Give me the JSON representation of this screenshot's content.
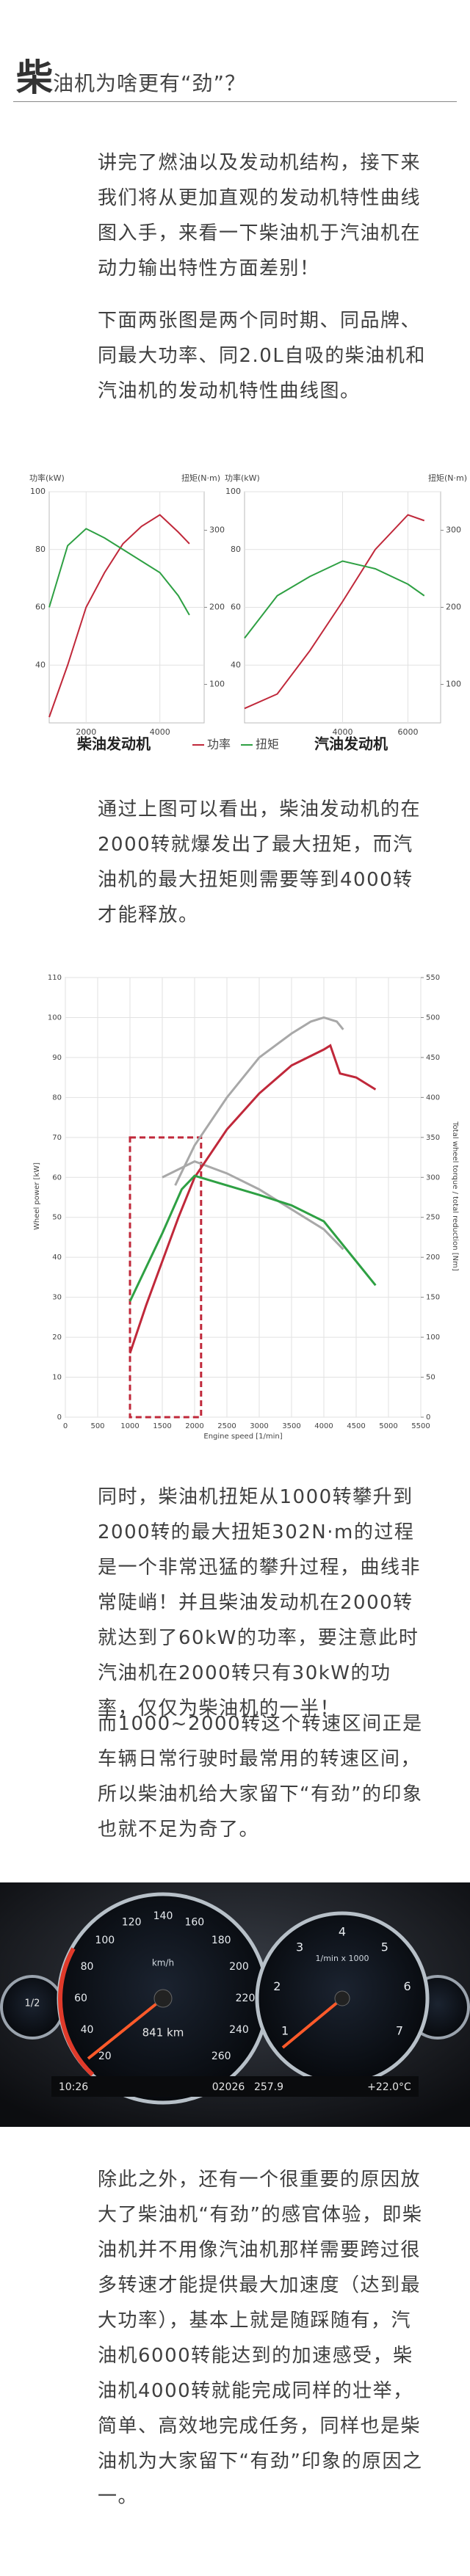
{
  "header": {
    "title_big": "柴",
    "title": "油机为啥更有“劲”？"
  },
  "paragraphs": [
    "讲完了燃油以及发动机结构，接下来我们将从更加直观的发动机特性曲线图入手，来看一下柴油机于汽油机在动力输出特性方面差别！",
    "下面两张图是两个同时期、同品牌、同最大功率、同2.0L自吸的柴油机和汽油机的发动机特性曲线图。",
    "通过上图可以看出，柴油发动机的在2000转就爆发出了最大扭矩，而汽油机的最大扭矩则需要等到4000转才能释放。",
    "同时，柴油机扭矩从1000转攀升到2000转的最大扭矩302N·m的过程是一个非常迅猛的攀升过程，曲线非常陡峭！并且柴油发动机在2000转就达到了60kW的功率，要注意此时汽油机在2000转只有30kW的功率，仅仅为柴油机的一半！",
    "而1000~2000转这个转速区间正是车辆日常行驶时最常用的转速区间，所以柴油机给大家留下“有劲”的印象也就不足为奇了。",
    "除此之外，还有一个很重要的原因放大了柴油机“有劲”的感官体验，即柴油机并不用像汽油机那样需要跨过很多转速才能提供最大加速度（达到最大功率），基本上就是随踩随有，汽油机6000转能达到的加速感受，柴油机4000转就能完成同样的壮举，简单、高效地完成任务，同样也是柴油机为大家留下“有劲”印象的原因之一。"
  ],
  "chart_data": [
    {
      "type": "line",
      "title": "柴油发动机",
      "ylabel": "功率(kW)",
      "y2label": "扭矩(N·m)",
      "xlim": [
        1000,
        5200
      ],
      "xticks": [
        2000,
        4000
      ],
      "ylim": [
        20,
        100
      ],
      "yticks": [
        40,
        60,
        80,
        100
      ],
      "y2lim": [
        50,
        350
      ],
      "y2ticks": [
        100,
        200,
        300
      ],
      "grid": true,
      "series": [
        {
          "name": "功率",
          "color": "#c0283a",
          "x": [
            1000,
            1500,
            2000,
            2500,
            3000,
            3500,
            4000,
            4500,
            4800
          ],
          "values": [
            22,
            40,
            60,
            72,
            82,
            88,
            92,
            86,
            82
          ]
        },
        {
          "name": "扭矩",
          "color": "#2ea043",
          "axis": "y2",
          "x": [
            1000,
            1500,
            2000,
            2500,
            3000,
            3500,
            4000,
            4500,
            4800
          ],
          "values": [
            200,
            280,
            302,
            290,
            275,
            260,
            245,
            215,
            190
          ]
        }
      ]
    },
    {
      "type": "line",
      "title": "汽油发动机",
      "ylabel": "功率(kW)",
      "y2label": "扭矩(N·m)",
      "xlim": [
        1000,
        7000
      ],
      "xticks": [
        4000,
        6000
      ],
      "ylim": [
        20,
        100
      ],
      "yticks": [
        40,
        60,
        80,
        100
      ],
      "y2lim": [
        50,
        350
      ],
      "y2ticks": [
        100,
        200,
        300
      ],
      "grid": true,
      "series": [
        {
          "color": "#c0283a",
          "x": [
            1000,
            2000,
            3000,
            4000,
            5000,
            6000,
            6500
          ],
          "values": [
            25,
            30,
            45,
            62,
            80,
            92,
            90
          ]
        },
        {
          "color": "#2ea043",
          "axis": "y2",
          "x": [
            1000,
            2000,
            3000,
            4000,
            5000,
            6000,
            6500
          ],
          "values": [
            160,
            215,
            240,
            260,
            250,
            230,
            215
          ]
        }
      ]
    },
    {
      "type": "line",
      "xlabel": "Engine speed [1/min]",
      "ylabel": "Wheel power [kW]",
      "y2label": "Total wheel torque / total reduction [Nm]",
      "xlim": [
        0,
        5500
      ],
      "xticks": [
        0,
        500,
        1000,
        1500,
        2000,
        2500,
        3000,
        3500,
        4000,
        4500,
        5000,
        5500
      ],
      "ylim": [
        0,
        110
      ],
      "yticks": [
        0,
        10,
        20,
        30,
        40,
        50,
        60,
        70,
        80,
        90,
        100,
        110
      ],
      "y2lim": [
        0,
        550
      ],
      "y2ticks": [
        0,
        50,
        100,
        150,
        200,
        250,
        300,
        350,
        400,
        450,
        500,
        550
      ],
      "grid": true,
      "highlight_box": {
        "xlim": [
          1000,
          2100
        ],
        "ylim": [
          0,
          70
        ],
        "color": "#c0283a"
      },
      "series": [
        {
          "color": "#a8a8a8",
          "x": [
            1700,
            2000,
            2500,
            3000,
            3500,
            3800,
            4000,
            4200,
            4300
          ],
          "values": [
            58,
            68,
            80,
            90,
            96,
            99,
            100,
            99,
            97
          ]
        },
        {
          "color": "#a8a8a8",
          "axis": "y2",
          "x": [
            1500,
            2000,
            2500,
            3000,
            3500,
            4000,
            4300
          ],
          "values": [
            300,
            320,
            305,
            285,
            260,
            235,
            210
          ]
        },
        {
          "color": "#c0283a",
          "x": [
            1000,
            1250,
            1500,
            1750,
            2000,
            2500,
            3000,
            3500,
            4000,
            4100,
            4250,
            4500,
            4800
          ],
          "values": [
            16,
            28,
            39,
            50,
            60,
            72,
            81,
            88,
            92,
            93,
            86,
            85,
            82
          ]
        },
        {
          "color": "#2ea043",
          "axis": "y2",
          "x": [
            1000,
            1500,
            1800,
            2000,
            2500,
            3000,
            3500,
            4000,
            4200,
            4500,
            4800
          ],
          "values": [
            145,
            230,
            285,
            302,
            290,
            278,
            265,
            245,
            225,
            195,
            165
          ]
        }
      ]
    }
  ],
  "dashboard": {
    "speed_ticks": [
      20,
      40,
      60,
      80,
      100,
      120,
      140,
      160,
      180,
      200,
      220,
      240,
      260
    ],
    "speed_unit": "km/h",
    "rpm_ticks": [
      1,
      2,
      3,
      4,
      5,
      6,
      7
    ],
    "rpm_unit": "1/min x 1000",
    "fuel": "1/2",
    "range": "841 km",
    "time": "10:26",
    "odometer": "02026",
    "trip": "257.9",
    "temperature": "+22.0°C"
  }
}
